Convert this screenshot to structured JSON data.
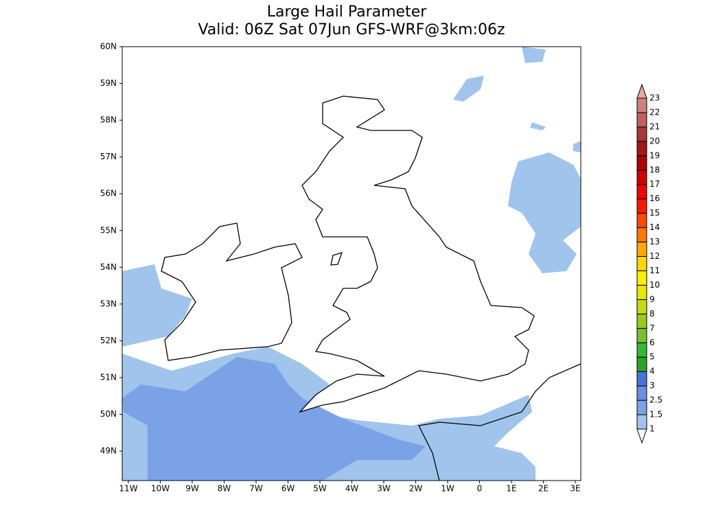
{
  "title": [
    "Large Hail Parameter",
    "Valid: 06Z Sat 07Jun GFS-WRF@3km:06z"
  ],
  "latitude_labels": [
    "60N",
    "59N",
    "58N",
    "57N",
    "56N",
    "55N",
    "54N",
    "53N",
    "52N",
    "51N",
    "50N",
    "49N"
  ],
  "longitude_labels": [
    "11W",
    "10W",
    "9W",
    "8W",
    "7W",
    "6W",
    "5W",
    "4W",
    "3W",
    "2W",
    "1W",
    "0",
    "1E",
    "2E",
    "3E"
  ],
  "legend": {
    "labels": [
      "1",
      "1.5",
      "2.5",
      "3",
      "4",
      "5",
      "6",
      "7",
      "8",
      "9",
      "10",
      "11",
      "12",
      "13",
      "14",
      "15",
      "16",
      "17",
      "18",
      "19",
      "20",
      "21",
      "22",
      "23"
    ],
    "colors": [
      "#ffffff",
      "#a0c4ec",
      "#7ba2e6",
      "#6b8fe0",
      "#4a72d8",
      "#2aa52a",
      "#36b83a",
      "#78c02c",
      "#98cc18",
      "#c4dc0c",
      "#e8e800",
      "#f8f000",
      "#ffd800",
      "#ffa800",
      "#ff7800",
      "#ff4800",
      "#ff1800",
      "#f00000",
      "#d00000",
      "#b00000",
      "#a01818",
      "#a83838",
      "#c06060",
      "#d08080",
      "#e0a8a8"
    ]
  }
}
